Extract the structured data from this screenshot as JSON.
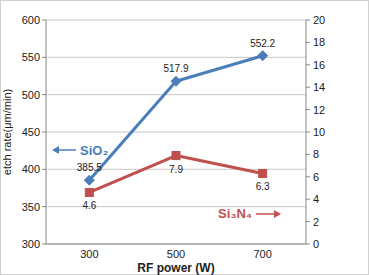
{
  "chart_data": {
    "type": "line",
    "x_label": "RF power (W)",
    "y_label": "etch rate(μm/min)",
    "categories": [
      "300",
      "500",
      "700"
    ],
    "series": [
      {
        "name": "SiO₂",
        "color": "#4a7ebb",
        "values": [
          385.5,
          517.9,
          552.2
        ],
        "marker": "diamond"
      },
      {
        "name": "Si₃N₄",
        "color": "#c0504d",
        "values": [
          4.6,
          7.9,
          6.3
        ],
        "marker": "square",
        "axis": "y2"
      }
    ],
    "ylim": [
      300,
      600
    ],
    "yticks": [
      300,
      350,
      400,
      450,
      500,
      550,
      600
    ],
    "y2lim": [
      0,
      20
    ],
    "y2ticks": [
      0,
      2,
      4,
      6,
      8,
      10,
      12,
      14,
      16,
      18,
      20
    ],
    "grid": true,
    "data_labels": true
  }
}
